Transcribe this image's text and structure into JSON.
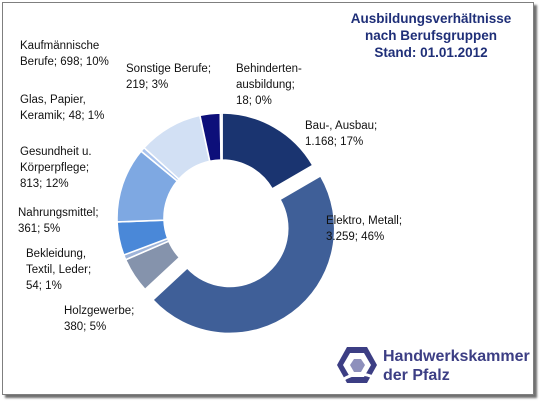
{
  "chart_data": {
    "type": "donut",
    "title": [
      "Ausbildungsverhältnisse",
      "nach Berufsgruppen",
      "Stand: 01.01.2012"
    ],
    "slices": [
      {
        "name": "Bau-, Ausbau",
        "value": 1168,
        "percent": 17,
        "label": [
          "Bau-,  Ausbau;",
          "1.168; 17%"
        ],
        "color": "#1a3470",
        "exploded": false
      },
      {
        "name": "Elektro, Metall",
        "value": 3259,
        "percent": 46,
        "label": [
          "Elektro, Metall;",
          "3.259; 46%"
        ],
        "color": "#3f5f98",
        "exploded": true
      },
      {
        "name": "Holzgewerbe",
        "value": 380,
        "percent": 5,
        "label": [
          "Holzgewerbe;",
          "380; 5%"
        ],
        "color": "#8593ac",
        "exploded": false
      },
      {
        "name": "Bekleidung, Textil, Leder",
        "value": 54,
        "percent": 1,
        "label": [
          "Bekleidung,",
          "Textil, Leder;",
          "54; 1%"
        ],
        "color": "#9fb4d8",
        "exploded": false
      },
      {
        "name": "Nahrungsmittel",
        "value": 361,
        "percent": 5,
        "label": [
          "Nahrungsmittel;",
          "361; 5%"
        ],
        "color": "#4a88d8",
        "exploded": false
      },
      {
        "name": "Gesundheit u. Körperpflege",
        "value": 813,
        "percent": 12,
        "label": [
          "Gesundheit u.",
          "Körperpflege;",
          "813; 12%"
        ],
        "color": "#7ea8e2",
        "exploded": false
      },
      {
        "name": "Glas, Papier, Keramik",
        "value": 48,
        "percent": 1,
        "label": [
          "Glas, Papier,",
          "Keramik; 48; 1%"
        ],
        "color": "#aac4ee",
        "exploded": false
      },
      {
        "name": "Kaufmännische Berufe",
        "value": 698,
        "percent": 10,
        "label": [
          "Kaufmännische",
          "Berufe; 698; 10%"
        ],
        "color": "#d2e0f4",
        "exploded": false
      },
      {
        "name": "Sonstige Berufe",
        "value": 219,
        "percent": 3,
        "label": [
          "Sonstige Berufe;",
          "219; 3%"
        ],
        "color": "#0d0f7a",
        "exploded": false
      },
      {
        "name": "Behindertenausbildung",
        "value": 18,
        "percent": 0,
        "label": [
          "Behinderten-",
          "ausbildung;",
          "18; 0%"
        ],
        "color": "#2a3a9a",
        "exploded": false
      }
    ]
  },
  "logo": {
    "line1": "Handwerkskammer",
    "line2": "der Pfalz"
  }
}
